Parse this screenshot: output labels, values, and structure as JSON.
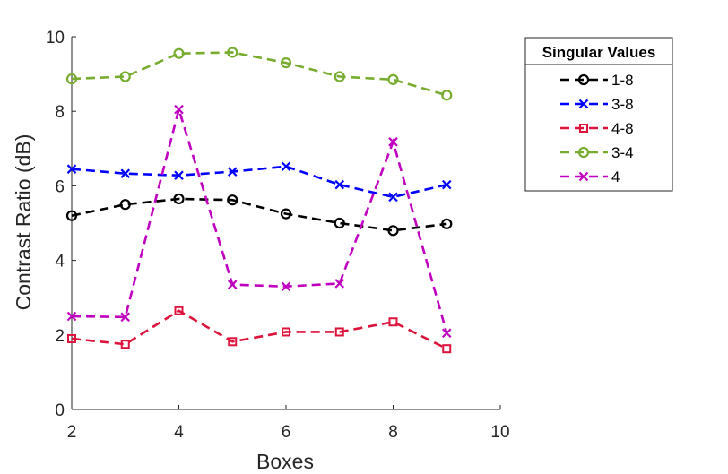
{
  "chart_data": {
    "type": "line",
    "title": "",
    "xlabel": "Boxes",
    "ylabel": "Contrast Ratio (dB)",
    "xlim": [
      2,
      10
    ],
    "ylim": [
      0,
      10
    ],
    "xticks": [
      2,
      4,
      6,
      8,
      10
    ],
    "yticks": [
      0,
      2,
      4,
      6,
      8,
      10
    ],
    "grid": false,
    "legend": {
      "title": "Singular Values",
      "placement": "right"
    },
    "x": [
      2,
      3,
      4,
      5,
      6,
      7,
      8,
      9
    ],
    "series": [
      {
        "name": "1-8",
        "color": "#000000",
        "marker": "circle",
        "line": "dashed",
        "values": [
          5.2,
          5.5,
          5.65,
          5.62,
          5.25,
          5.0,
          4.8,
          4.98
        ]
      },
      {
        "name": "3-8",
        "color": "#0000ff",
        "marker": "x",
        "line": "dashed",
        "values": [
          6.45,
          6.33,
          6.28,
          6.38,
          6.52,
          6.03,
          5.7,
          6.03
        ]
      },
      {
        "name": "4-8",
        "color": "#dc143c",
        "marker": "square",
        "line": "dashed",
        "values": [
          1.9,
          1.75,
          2.65,
          1.82,
          2.08,
          2.08,
          2.35,
          1.63
        ]
      },
      {
        "name": "3-4",
        "color": "#77ac30",
        "marker": "circle",
        "line": "dashed",
        "values": [
          8.87,
          8.93,
          9.55,
          9.58,
          9.3,
          8.93,
          8.85,
          8.43
        ]
      },
      {
        "name": "4",
        "color": "#bf00bf",
        "marker": "x",
        "line": "dashed",
        "values": [
          2.5,
          2.48,
          8.05,
          3.35,
          3.3,
          3.38,
          7.18,
          2.05
        ]
      }
    ]
  }
}
